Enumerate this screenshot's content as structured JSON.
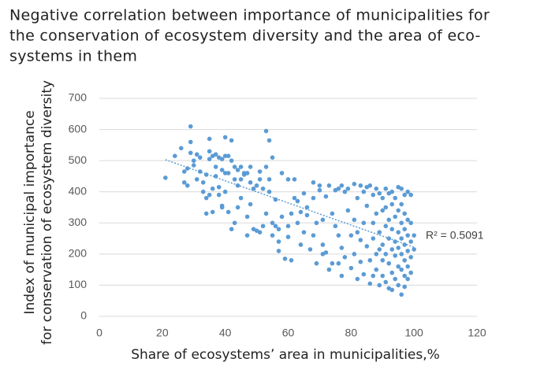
{
  "chart_data": {
    "type": "scatter",
    "title": [
      "Negative correlation between importance of municipalities for",
      "the conservation of ecosystem diversity and the area of eco-",
      "systems in them"
    ],
    "x_label": "Share of ecosystems’ area in municipalities,%",
    "y_label": [
      "Index of municipal importance",
      "for conservation of ecosystem diversity"
    ],
    "color": "#5b9bd5",
    "xlim": [
      0,
      120
    ],
    "xticks": [
      0,
      20,
      40,
      60,
      80,
      100,
      120
    ],
    "ylim": [
      0,
      700
    ],
    "yticks": [
      0,
      100,
      200,
      300,
      400,
      500,
      600,
      700
    ],
    "grid": true,
    "x": [
      21,
      24,
      26,
      27,
      27,
      28,
      28,
      29,
      29,
      29,
      30,
      30,
      31,
      31,
      32,
      32,
      33,
      33,
      34,
      34,
      34,
      35,
      35,
      35,
      35,
      36,
      36,
      36,
      37,
      37,
      37,
      38,
      38,
      38,
      39,
      39,
      39,
      39,
      40,
      40,
      40,
      40,
      41,
      41,
      41,
      42,
      42,
      42,
      43,
      43,
      43,
      44,
      44,
      44,
      45,
      45,
      45,
      46,
      46,
      47,
      47,
      47,
      48,
      48,
      48,
      49,
      49,
      50,
      50,
      51,
      51,
      51,
      52,
      52,
      53,
      53,
      53,
      54,
      54,
      54,
      55,
      55,
      55,
      56,
      56,
      57,
      57,
      57,
      58,
      58,
      59,
      60,
      60,
      60,
      61,
      61,
      62,
      62,
      63,
      63,
      64,
      64,
      65,
      65,
      66,
      66,
      67,
      68,
      68,
      68,
      69,
      69,
      70,
      70,
      71,
      71,
      71,
      72,
      72,
      73,
      73,
      74,
      74,
      75,
      75,
      76,
      76,
      76,
      77,
      77,
      77,
      78,
      78,
      79,
      79,
      80,
      80,
      81,
      81,
      81,
      82,
      82,
      82,
      83,
      83,
      83,
      84,
      84,
      84,
      85,
      85,
      85,
      86,
      86,
      86,
      87,
      87,
      87,
      87,
      88,
      88,
      88,
      88,
      89,
      89,
      89,
      89,
      90,
      90,
      90,
      90,
      90,
      91,
      91,
      91,
      91,
      91,
      92,
      92,
      92,
      92,
      92,
      93,
      93,
      93,
      93,
      93,
      93,
      94,
      94,
      94,
      94,
      94,
      95,
      95,
      95,
      95,
      95,
      95,
      96,
      96,
      96,
      96,
      96,
      96,
      96,
      97,
      97,
      97,
      97,
      97,
      97,
      97,
      98,
      98,
      98,
      98,
      98,
      98,
      99,
      99,
      99,
      99,
      99,
      100,
      100
    ],
    "values": [
      445,
      515,
      540,
      430,
      465,
      420,
      475,
      610,
      560,
      525,
      500,
      485,
      440,
      520,
      465,
      510,
      430,
      400,
      380,
      455,
      330,
      570,
      505,
      530,
      390,
      515,
      410,
      335,
      520,
      480,
      450,
      510,
      390,
      415,
      505,
      470,
      355,
      350,
      575,
      515,
      460,
      400,
      515,
      460,
      335,
      565,
      500,
      280,
      480,
      440,
      300,
      470,
      420,
      350,
      480,
      440,
      380,
      455,
      460,
      460,
      320,
      260,
      480,
      430,
      360,
      410,
      280,
      420,
      275,
      465,
      440,
      270,
      410,
      290,
      595,
      480,
      330,
      565,
      440,
      400,
      510,
      260,
      300,
      375,
      290,
      280,
      210,
      240,
      460,
      320,
      185,
      440,
      290,
      255,
      330,
      180,
      440,
      380,
      300,
      370,
      230,
      335,
      395,
      270,
      325,
      350,
      215,
      430,
      380,
      260,
      170,
      300,
      420,
      405,
      310,
      230,
      200,
      385,
      205,
      420,
      150,
      330,
      170,
      405,
      290,
      410,
      260,
      170,
      420,
      220,
      130,
      400,
      190,
      410,
      340,
      260,
      155,
      425,
      310,
      200,
      380,
      120,
      270,
      420,
      245,
      175,
      400,
      300,
      135,
      415,
      355,
      225,
      420,
      180,
      105,
      390,
      300,
      250,
      130,
      410,
      330,
      200,
      150,
      395,
      270,
      215,
      100,
      380,
      340,
      230,
      180,
      130,
      410,
      350,
      290,
      200,
      110,
      395,
      310,
      250,
      170,
      90,
      400,
      360,
      280,
      215,
      140,
      85,
      380,
      320,
      240,
      195,
      120,
      415,
      340,
      270,
      220,
      160,
      100,
      410,
      360,
      300,
      250,
      200,
      150,
      70,
      390,
      330,
      280,
      230,
      180,
      130,
      95,
      400,
      310,
      260,
      210,
      160,
      120,
      390,
      300,
      240,
      190,
      140,
      260,
      215
    ],
    "trendline": {
      "x": [
        21,
        100
      ],
      "y": [
        503,
        222
      ],
      "label": "R² = 0.5091"
    }
  }
}
